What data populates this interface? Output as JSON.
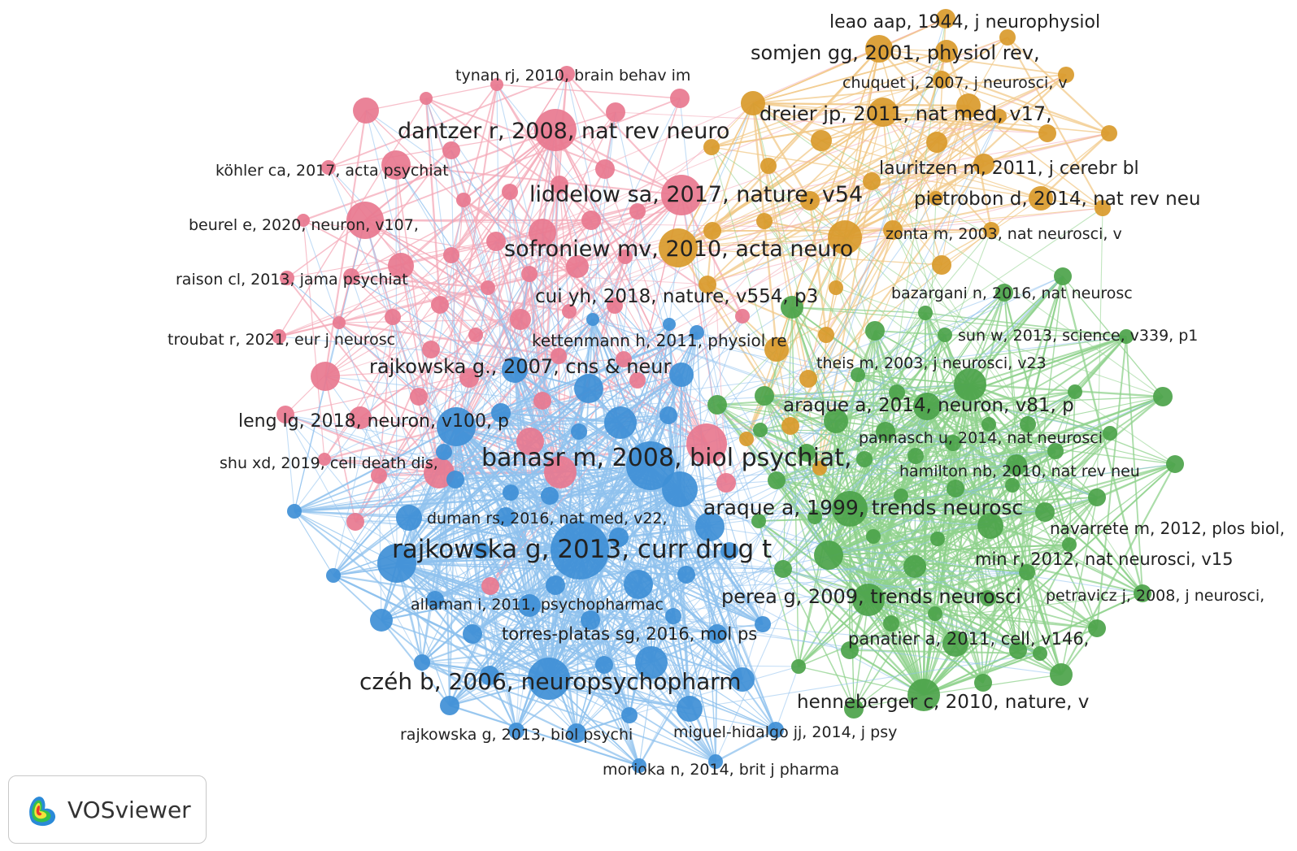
{
  "colors": {
    "pink": "#e8788f",
    "orange": "#d99a2b",
    "green": "#4ca34a",
    "blue": "#3f8fd6",
    "pink_link": "#f4aab8",
    "orange_link": "#f2c98a",
    "green_link": "#8fd18c",
    "blue_link": "#8fc1ee",
    "label": "#222222"
  },
  "brand": {
    "name": "VOSviewer"
  },
  "labels": [
    {
      "text": "leao aap, 1944, j neurophysiol",
      "cluster": "orange",
      "weight": 2
    },
    {
      "text": "somjen gg, 2001, physiol rev,",
      "cluster": "orange",
      "weight": 3
    },
    {
      "text": "chuquet j, 2007, j neurosci, v",
      "cluster": "orange",
      "weight": 1
    },
    {
      "text": "dreier jp, 2011, nat med, v17,",
      "cluster": "orange",
      "weight": 3
    },
    {
      "text": "lauritzen m, 2011, j cerebr bl",
      "cluster": "orange",
      "weight": 2
    },
    {
      "text": "pietrobon d, 2014, nat rev neu",
      "cluster": "orange",
      "weight": 3
    },
    {
      "text": "zonta m, 2003, nat neurosci, v",
      "cluster": "orange",
      "weight": 1
    },
    {
      "text": "sofroniew mv, 2010, acta neuro",
      "cluster": "orange",
      "weight": 4
    },
    {
      "text": "tynan rj, 2010, brain behav im",
      "cluster": "pink",
      "weight": 1
    },
    {
      "text": "dantzer r, 2008, nat rev neuro",
      "cluster": "pink",
      "weight": 4
    },
    {
      "text": "köhler ca, 2017, acta psychiat",
      "cluster": "pink",
      "weight": 1
    },
    {
      "text": "liddelow sa, 2017, nature, v54",
      "cluster": "pink",
      "weight": 4
    },
    {
      "text": "beurel e, 2020, neuron, v107,",
      "cluster": "pink",
      "weight": 1
    },
    {
      "text": "raison cl, 2013, jama psychiat",
      "cluster": "pink",
      "weight": 1
    },
    {
      "text": "cui yh, 2018, nature, v554, p3",
      "cluster": "pink",
      "weight": 2
    },
    {
      "text": "troubat r, 2021, eur j neurosc",
      "cluster": "pink",
      "weight": 1
    },
    {
      "text": "kettenmann h, 2011, physiol re",
      "cluster": "pink",
      "weight": 1
    },
    {
      "text": "leng lg, 2018, neuron, v100, p",
      "cluster": "pink",
      "weight": 2
    },
    {
      "text": "shu xd, 2019, cell death dis,",
      "cluster": "pink",
      "weight": 1
    },
    {
      "text": "rajkowska g., 2007, cns & neur",
      "cluster": "blue",
      "weight": 3
    },
    {
      "text": "banasr m, 2008, biol psychiat,",
      "cluster": "blue",
      "weight": 5
    },
    {
      "text": "duman rs, 2016, nat med, v22,",
      "cluster": "blue",
      "weight": 1
    },
    {
      "text": "rajkowska g, 2013, curr drug t",
      "cluster": "blue",
      "weight": 6
    },
    {
      "text": "allaman i, 2011, psychopharmac",
      "cluster": "blue",
      "weight": 1
    },
    {
      "text": "torres-platas sg, 2016, mol ps",
      "cluster": "blue",
      "weight": 2
    },
    {
      "text": "czéh b, 2006, neuropsychopharm",
      "cluster": "blue",
      "weight": 5
    },
    {
      "text": "rajkowska g, 2013, biol psychi",
      "cluster": "blue",
      "weight": 1
    },
    {
      "text": "miguel-hidalgo jj, 2014, j psy",
      "cluster": "blue",
      "weight": 1
    },
    {
      "text": "morioka n, 2014, brit j pharma",
      "cluster": "blue",
      "weight": 1
    },
    {
      "text": "bazargani n, 2016, nat neurosc",
      "cluster": "green",
      "weight": 1
    },
    {
      "text": "sun w, 2013, science, v339, p1",
      "cluster": "green",
      "weight": 1
    },
    {
      "text": "theis m, 2003, j neurosci, v23",
      "cluster": "green",
      "weight": 1
    },
    {
      "text": "araque a, 2014, neuron, v81, p",
      "cluster": "green",
      "weight": 3
    },
    {
      "text": "pannasch u, 2014, nat neurosci",
      "cluster": "green",
      "weight": 1
    },
    {
      "text": "hamilton nb, 2010, nat rev neu",
      "cluster": "green",
      "weight": 1
    },
    {
      "text": "araque a, 1999, trends neurosc",
      "cluster": "green",
      "weight": 4
    },
    {
      "text": "navarrete m, 2012, plos biol,",
      "cluster": "green",
      "weight": 1
    },
    {
      "text": "min r, 2012, nat neurosci, v15",
      "cluster": "green",
      "weight": 2
    },
    {
      "text": "perea g, 2009, trends neurosci",
      "cluster": "green",
      "weight": 4
    },
    {
      "text": "petravicz j, 2008, j neurosci,",
      "cluster": "green",
      "weight": 1
    },
    {
      "text": "panatier a, 2011, cell, v146,",
      "cluster": "green",
      "weight": 2
    },
    {
      "text": "henneberger c, 2010, nature, v",
      "cluster": "green",
      "weight": 3
    }
  ]
}
